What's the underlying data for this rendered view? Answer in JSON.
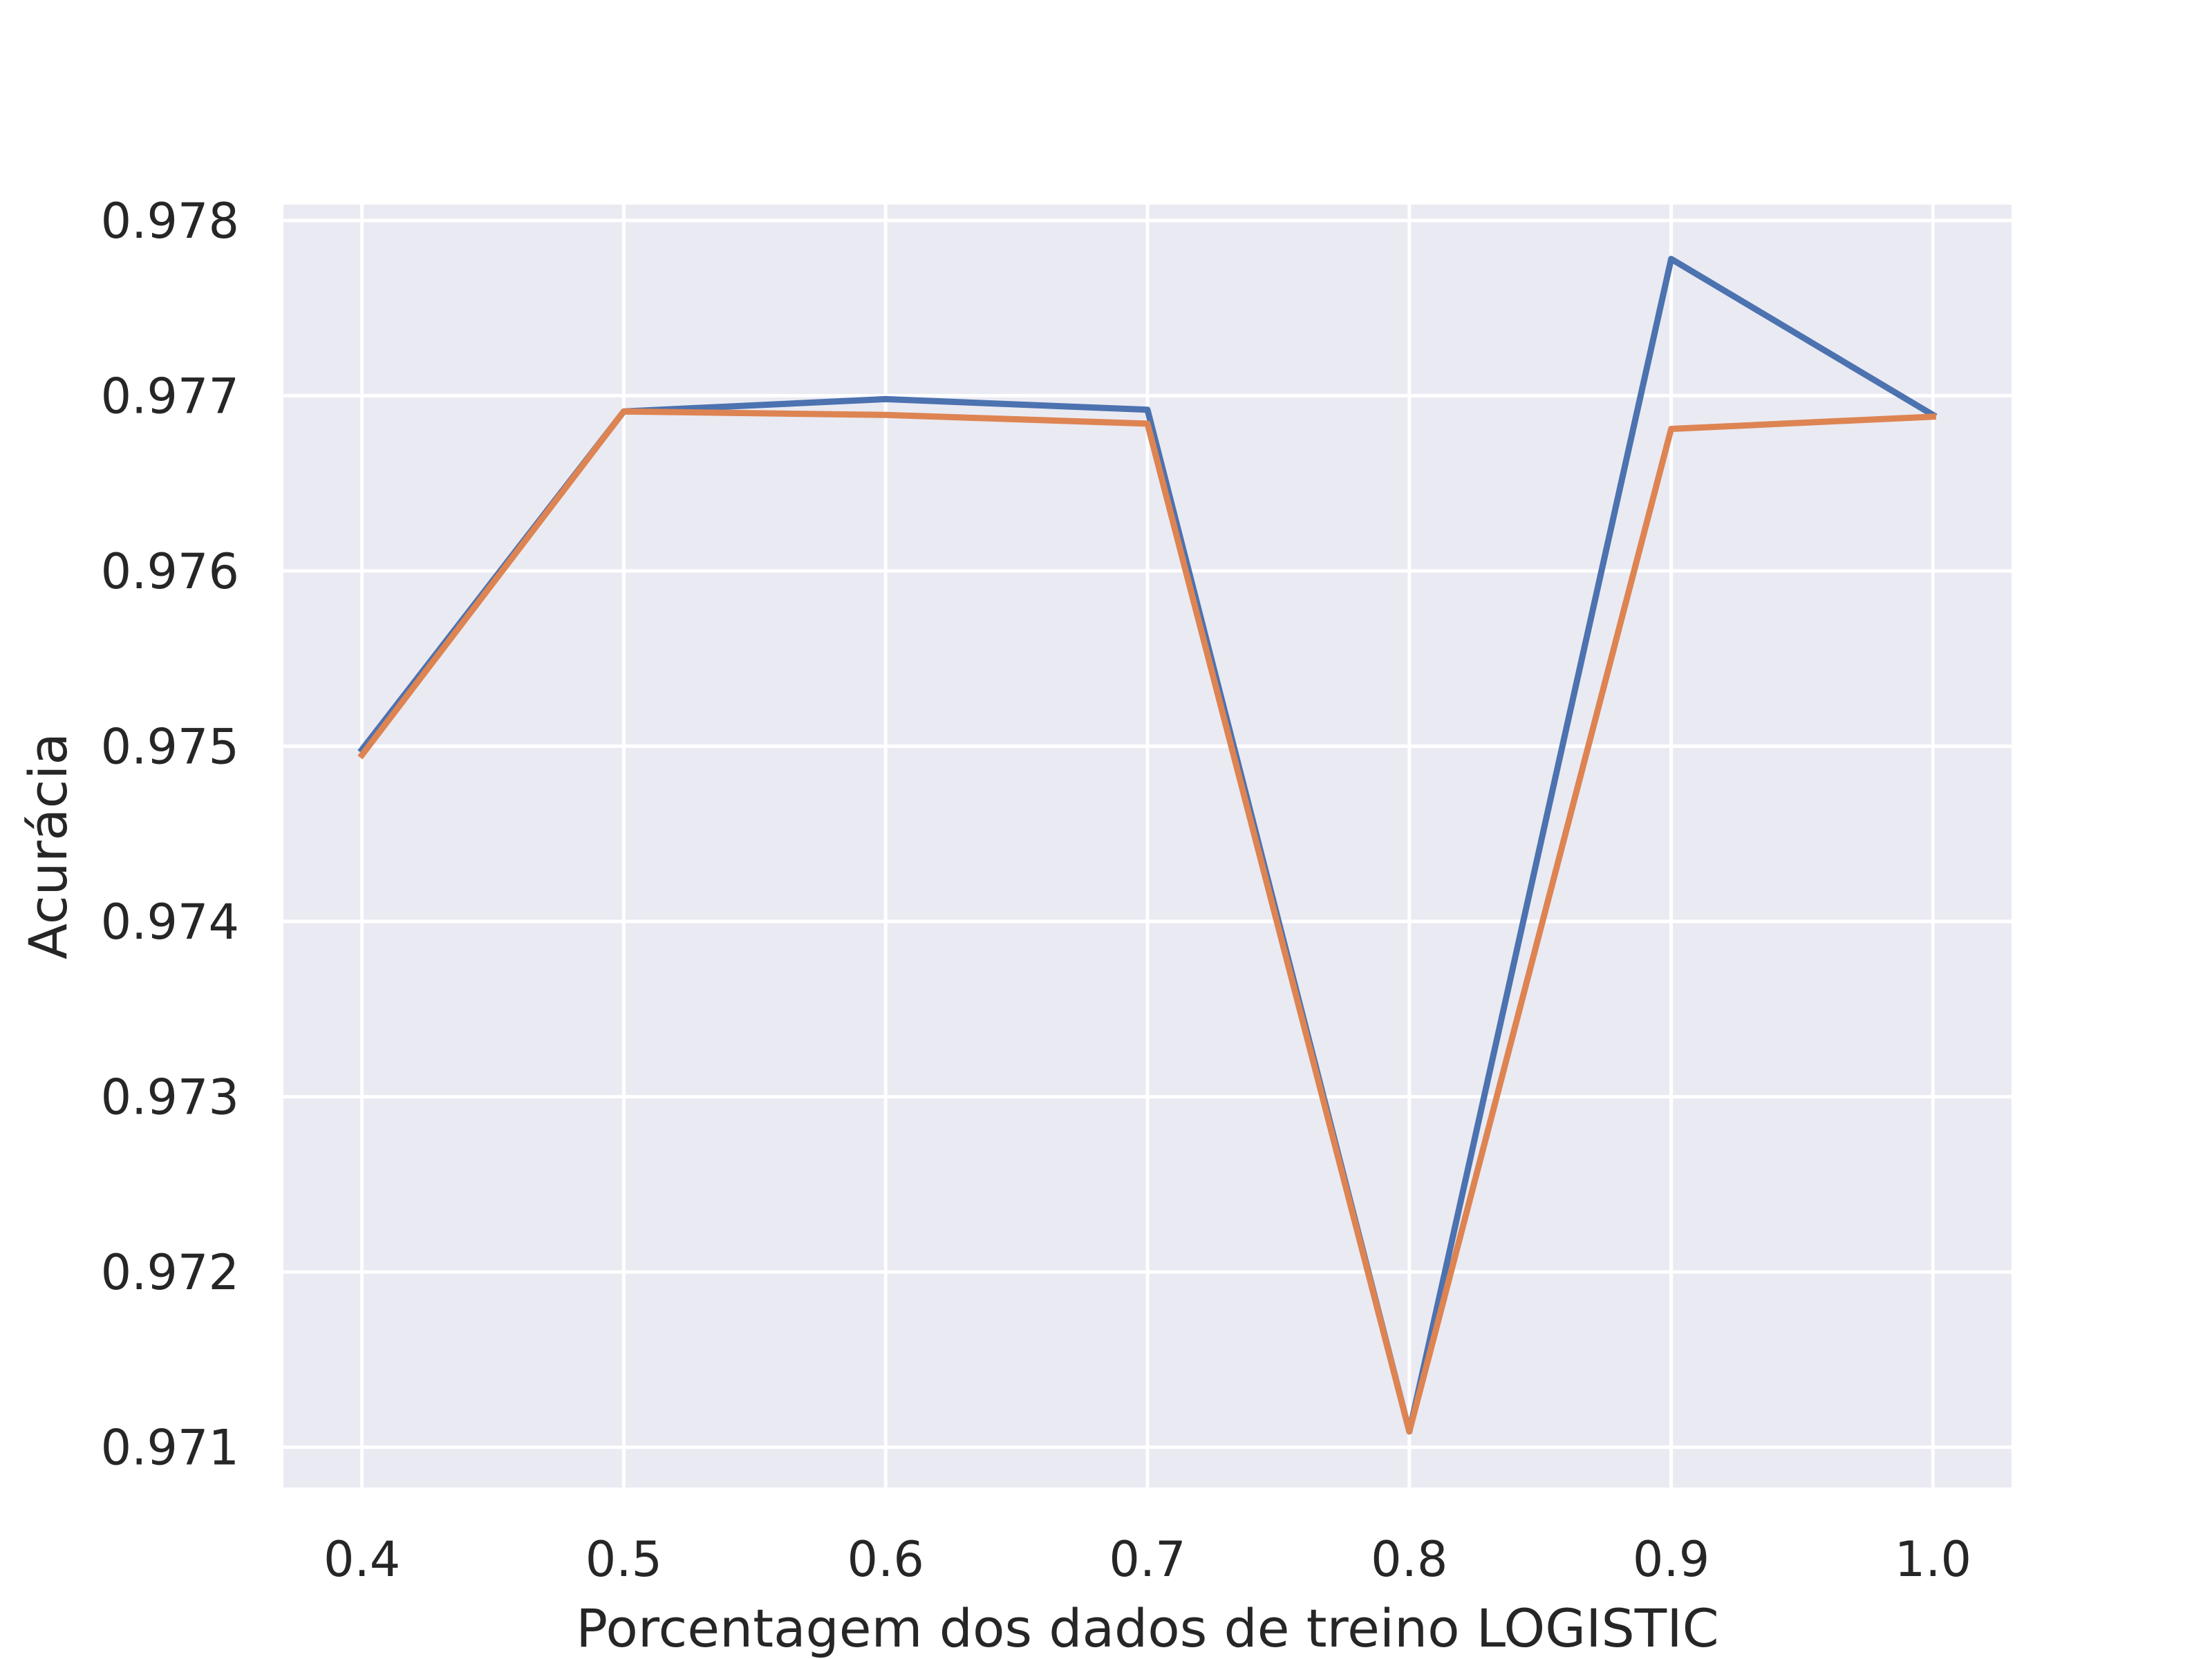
{
  "chart_data": {
    "type": "line",
    "title": "",
    "xlabel": "Porcentagem dos dados de treino  LOGISTIC",
    "ylabel": "Acurácia",
    "x": [
      0.4,
      0.5,
      0.6,
      0.7,
      0.8,
      0.9,
      1.0
    ],
    "x_tick_labels": [
      "0.4",
      "0.5",
      "0.6",
      "0.7",
      "0.8",
      "0.9",
      "1.0"
    ],
    "y_ticks": [
      0.971,
      0.972,
      0.973,
      0.974,
      0.975,
      0.976,
      0.977,
      0.978
    ],
    "y_tick_labels": [
      "0.971",
      "0.972",
      "0.973",
      "0.974",
      "0.975",
      "0.976",
      "0.977",
      "0.978"
    ],
    "xlim": [
      0.37,
      1.03
    ],
    "ylim": [
      0.97077,
      0.97809
    ],
    "grid": true,
    "legend": "none",
    "series": [
      {
        "color": "#4c72b0",
        "values": [
          0.97498,
          0.97691,
          0.97698,
          0.97692,
          0.97109,
          0.97778,
          0.97689
        ]
      },
      {
        "color": "#dd8452",
        "values": [
          0.97495,
          0.97691,
          0.97689,
          0.97684,
          0.97109,
          0.97681,
          0.97688
        ]
      }
    ]
  },
  "colors": {
    "background": "#eaeaf2",
    "grid": "#ffffff",
    "text": "#262626"
  }
}
